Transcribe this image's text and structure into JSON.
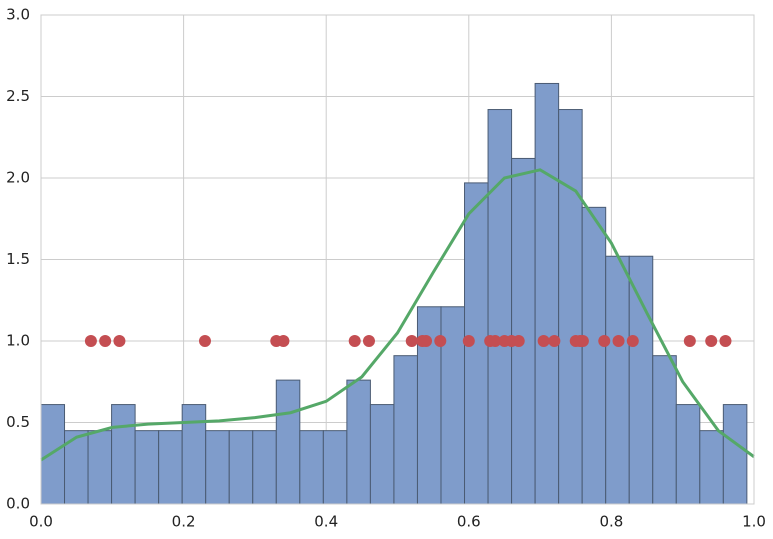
{
  "chart_data": {
    "type": "histogram",
    "bins": [
      0,
      0.033,
      0.066,
      0.099,
      0.132,
      0.165,
      0.198,
      0.231,
      0.264,
      0.297,
      0.33,
      0.363,
      0.396,
      0.429,
      0.462,
      0.495,
      0.528,
      0.561,
      0.594,
      0.627,
      0.66,
      0.693,
      0.726,
      0.759,
      0.792,
      0.825,
      0.858,
      0.891,
      0.924,
      0.957,
      0.99
    ],
    "values": [
      0.61,
      0.45,
      0.45,
      0.61,
      0.45,
      0.45,
      0.61,
      0.45,
      0.45,
      0.45,
      0.76,
      0.45,
      0.45,
      0.76,
      0.61,
      0.91,
      1.21,
      1.21,
      1.97,
      2.42,
      2.12,
      2.58,
      2.42,
      1.82,
      1.52,
      1.52,
      0.91,
      0.61,
      0.45,
      0.61
    ],
    "color": "#7f9ccb",
    "edge_color": "#4a5b73",
    "kde": {
      "color": "#55a868",
      "x": [
        0,
        0.05,
        0.1,
        0.15,
        0.2,
        0.25,
        0.3,
        0.35,
        0.4,
        0.45,
        0.5,
        0.55,
        0.6,
        0.65,
        0.7,
        0.75,
        0.8,
        0.85,
        0.9,
        0.95,
        1.0
      ],
      "values": [
        0.27,
        0.41,
        0.47,
        0.49,
        0.5,
        0.51,
        0.53,
        0.56,
        0.63,
        0.78,
        1.05,
        1.42,
        1.78,
        2.0,
        2.05,
        1.92,
        1.6,
        1.17,
        0.75,
        0.45,
        0.29
      ]
    },
    "rug": {
      "color": "#c44e52",
      "x": [
        0.07,
        0.09,
        0.11,
        0.23,
        0.33,
        0.34,
        0.44,
        0.46,
        0.52,
        0.535,
        0.54,
        0.56,
        0.6,
        0.63,
        0.637,
        0.65,
        0.66,
        0.67,
        0.705,
        0.72,
        0.75,
        0.756,
        0.76,
        0.79,
        0.81,
        0.83,
        0.91,
        0.94,
        0.96
      ],
      "values": [
        1,
        1,
        1,
        1,
        1,
        1,
        1,
        1,
        1,
        1,
        1,
        1,
        1,
        1,
        1,
        1,
        1,
        1,
        1,
        1,
        1,
        1,
        1,
        1,
        1,
        1,
        1,
        1,
        1
      ]
    },
    "xlim": [
      0,
      1.0
    ],
    "ylim": [
      0,
      3.0
    ],
    "xticks": [
      {
        "value": 0,
        "label": "0.0"
      },
      0.2,
      0.4,
      0.6,
      0.8,
      {
        "value": 1,
        "label": "1.0"
      }
    ],
    "yticks": [
      {
        "value": 0,
        "label": "0.0"
      },
      0.5,
      {
        "value": 1,
        "label": "1.0"
      },
      1.5,
      {
        "value": 2,
        "label": "2.0"
      },
      2.5,
      {
        "value": 3,
        "label": "3.0"
      }
    ],
    "grid": true
  }
}
